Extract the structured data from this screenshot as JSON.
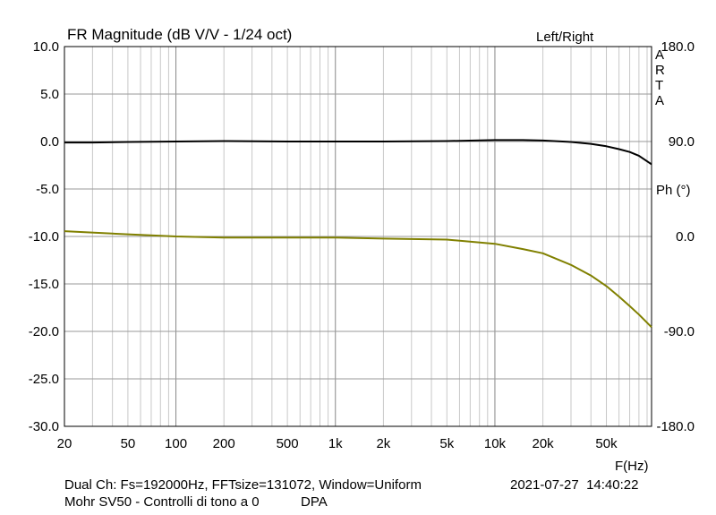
{
  "chart_data": {
    "type": "line",
    "title": "FR Magnitude (dB V/V - 1/24 oct)",
    "legend": "Left/Right",
    "brand": [
      "A",
      "R",
      "T",
      "A"
    ],
    "xlabel": "F(Hz)",
    "x_scale": "log",
    "xlim": [
      20,
      96000
    ],
    "x_ticks": [
      20,
      50,
      100,
      200,
      500,
      1000,
      2000,
      5000,
      10000,
      20000,
      50000
    ],
    "x_tick_labels": [
      "20",
      "50",
      "100",
      "200",
      "500",
      "1k",
      "2k",
      "5k",
      "10k",
      "20k",
      "50k"
    ],
    "ylabel_left": "",
    "ylim": [
      -30,
      10
    ],
    "y_ticks": [
      10,
      5,
      0,
      -5,
      -10,
      -15,
      -20,
      -25,
      -30
    ],
    "y_tick_labels": [
      "10.0",
      "5.0",
      "0.0",
      "-5.0",
      "-10.0",
      "-15.0",
      "-20.0",
      "-25.0",
      "-30.0"
    ],
    "ylabel_right": "Ph (°)",
    "y2lim": [
      -180,
      180
    ],
    "y2_ticks": [
      180,
      90,
      0,
      -90,
      -180
    ],
    "y2_tick_labels": [
      "180.0",
      "90.0",
      "0.0",
      "-90.0",
      "-180.0"
    ],
    "grid": true,
    "series": [
      {
        "axis": "left",
        "color": "#000000",
        "x": [
          20,
          30,
          50,
          100,
          200,
          500,
          1000,
          2000,
          5000,
          10000,
          15000,
          20000,
          30000,
          40000,
          50000,
          60000,
          70000,
          80000,
          96000
        ],
        "values": [
          -0.1,
          -0.1,
          -0.05,
          0.0,
          0.05,
          0.0,
          0.0,
          0.0,
          0.05,
          0.15,
          0.15,
          0.1,
          -0.05,
          -0.25,
          -0.5,
          -0.8,
          -1.1,
          -1.5,
          -2.4
        ]
      },
      {
        "axis": "right",
        "color": "#808000",
        "x": [
          20,
          50,
          100,
          200,
          500,
          1000,
          2000,
          5000,
          10000,
          15000,
          20000,
          30000,
          40000,
          50000,
          60000,
          70000,
          80000,
          96000
        ],
        "values": [
          5,
          2,
          0,
          -1,
          -1,
          -1,
          -2,
          -3,
          -7,
          -12,
          -16,
          -27,
          -37,
          -47,
          -57,
          -66,
          -74,
          -86
        ]
      }
    ]
  },
  "footer": {
    "settings": "Dual Ch: Fs=192000Hz, FFTsize=131072, Window=Uniform",
    "datetime": "2021-07-27  14:40:22",
    "device": "Mohr SV50 - Controlli di tono a 0",
    "mode": "DPA"
  }
}
